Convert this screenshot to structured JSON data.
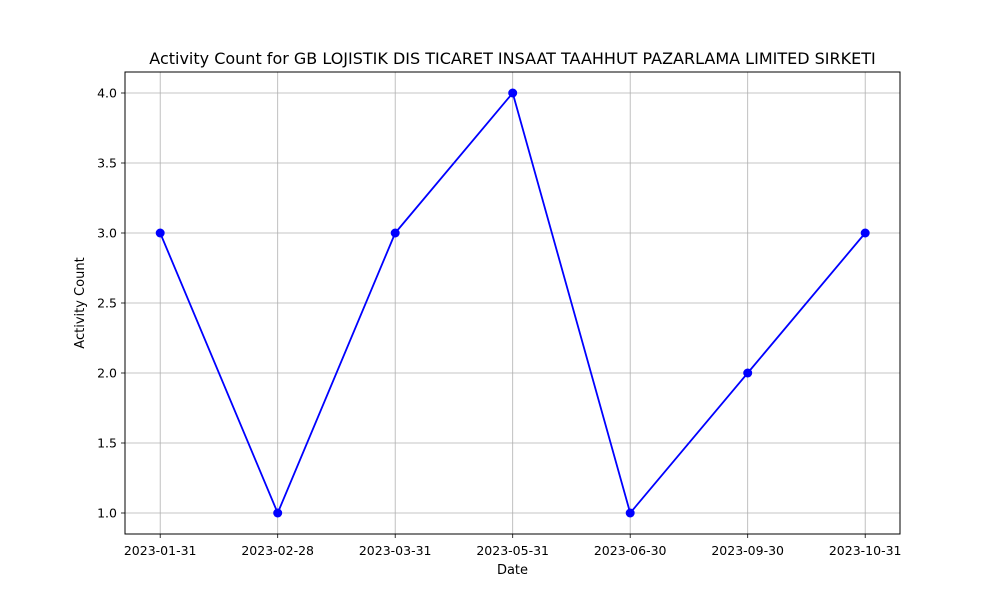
{
  "chart_data": {
    "type": "line",
    "title": "Activity Count for GB LOJISTIK DIS TICARET INSAAT TAAHHUT PAZARLAMA LIMITED SIRKETI",
    "xlabel": "Date",
    "ylabel": "Activity Count",
    "categories": [
      "2023-01-31",
      "2023-02-28",
      "2023-03-31",
      "2023-05-31",
      "2023-06-30",
      "2023-09-30",
      "2023-10-31"
    ],
    "series": [
      {
        "values": [
          3,
          1,
          3,
          4,
          1,
          2,
          3
        ],
        "color": "#0000ff",
        "marker": "circle"
      }
    ],
    "ylim": [
      0.85,
      4.15
    ],
    "yticks": [
      1.0,
      1.5,
      2.0,
      2.5,
      3.0,
      3.5,
      4.0
    ],
    "ytick_labels": [
      "1.0",
      "1.5",
      "2.0",
      "2.5",
      "3.0",
      "3.5",
      "4.0"
    ],
    "grid": true,
    "grid_color": "#b0b0b0"
  }
}
